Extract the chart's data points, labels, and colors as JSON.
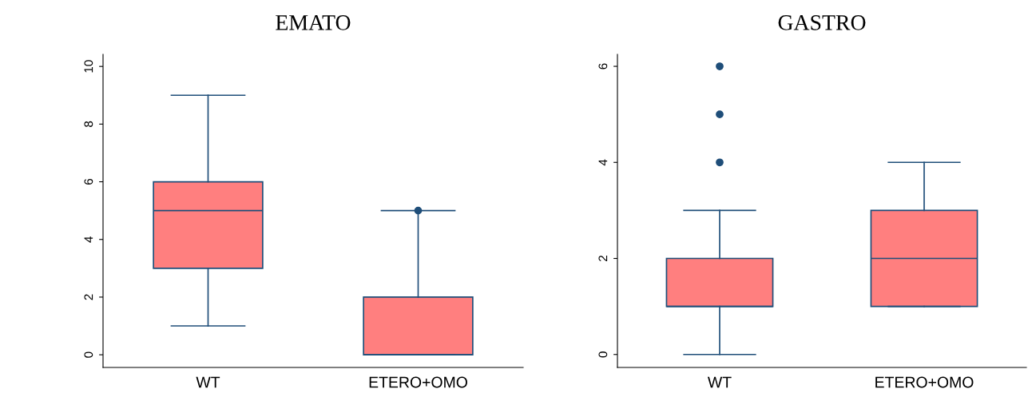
{
  "chart_data": [
    {
      "type": "box",
      "title": "EMATO",
      "categories": [
        "WT",
        "ETERO+OMO"
      ],
      "color": "#ff7f7f",
      "ylim": [
        -0.44,
        10.42
      ],
      "yticks": [
        0,
        2,
        4,
        6,
        8,
        10
      ],
      "grid": false,
      "boxes": [
        {
          "low": 1,
          "q1": 3,
          "median": 5,
          "q3": 6,
          "high": 9
        },
        {
          "low": 0,
          "q1": 0,
          "median": 0,
          "q3": 2,
          "high": 5,
          "outliers": [
            5
          ]
        }
      ]
    },
    {
      "type": "box",
      "title": "GASTRO",
      "categories": [
        "WT",
        "ETERO+OMO"
      ],
      "color": "#ff7f7f",
      "ylim": [
        -0.27,
        6.25
      ],
      "yticks": [
        0,
        2,
        4,
        6
      ],
      "grid": false,
      "boxes": [
        {
          "low": 0,
          "q1": 1,
          "median": 1,
          "q3": 2,
          "high": 3,
          "outliers": [
            4,
            5,
            6
          ]
        },
        {
          "low": 1,
          "q1": 1,
          "median": 2,
          "q3": 3,
          "high": 4
        }
      ]
    }
  ]
}
